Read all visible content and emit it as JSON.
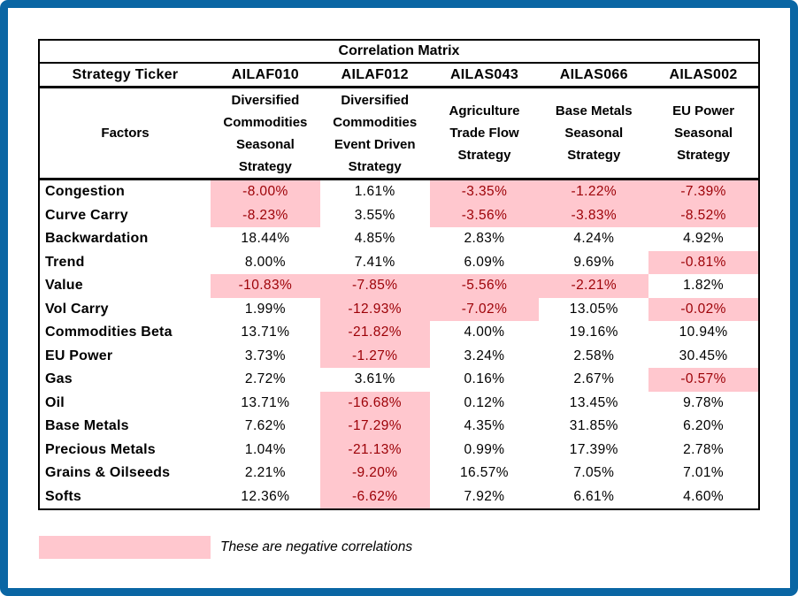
{
  "colors": {
    "frame_blue": "#0A66A4",
    "negative_bg": "#FFC7CE",
    "negative_text": "#9C0006",
    "table_border": "#000000"
  },
  "table": {
    "title": "Correlation Matrix",
    "strategy_ticker_label": "Strategy Ticker",
    "factors_label": "Factors",
    "columns": [
      {
        "ticker": "AILAF010",
        "name": "Diversified Commodities Seasonal Strategy"
      },
      {
        "ticker": "AILAF012",
        "name": "Diversified Commodities Event Driven Strategy"
      },
      {
        "ticker": "AILAS043",
        "name": "Agriculture Trade Flow Strategy"
      },
      {
        "ticker": "AILAS066",
        "name": "Base Metals Seasonal Strategy"
      },
      {
        "ticker": "AILAS002",
        "name": "EU Power Seasonal Strategy"
      }
    ],
    "rows": [
      {
        "factor": "Congestion",
        "values_pct": [
          -8.0,
          1.61,
          -3.35,
          -1.22,
          -7.39
        ]
      },
      {
        "factor": "Curve Carry",
        "values_pct": [
          -8.23,
          3.55,
          -3.56,
          -3.83,
          -8.52
        ]
      },
      {
        "factor": "Backwardation",
        "values_pct": [
          18.44,
          4.85,
          2.83,
          4.24,
          4.92
        ]
      },
      {
        "factor": "Trend",
        "values_pct": [
          8.0,
          7.41,
          6.09,
          9.69,
          -0.81
        ]
      },
      {
        "factor": "Value",
        "values_pct": [
          -10.83,
          -7.85,
          -5.56,
          -2.21,
          1.82
        ]
      },
      {
        "factor": "Vol Carry",
        "values_pct": [
          1.99,
          -12.93,
          -7.02,
          13.05,
          -0.02
        ]
      },
      {
        "factor": "Commodities Beta",
        "values_pct": [
          13.71,
          -21.82,
          4.0,
          19.16,
          10.94
        ]
      },
      {
        "factor": "EU Power",
        "values_pct": [
          3.73,
          -1.27,
          3.24,
          2.58,
          30.45
        ]
      },
      {
        "factor": "Gas",
        "values_pct": [
          2.72,
          3.61,
          0.16,
          2.67,
          -0.57
        ]
      },
      {
        "factor": "Oil",
        "values_pct": [
          13.71,
          -16.68,
          0.12,
          13.45,
          9.78
        ]
      },
      {
        "factor": "Base Metals",
        "values_pct": [
          7.62,
          -17.29,
          4.35,
          31.85,
          6.2
        ]
      },
      {
        "factor": "Precious Metals",
        "values_pct": [
          1.04,
          -21.13,
          0.99,
          17.39,
          2.78
        ]
      },
      {
        "factor": "Grains & Oilseeds",
        "values_pct": [
          2.21,
          -9.2,
          16.57,
          7.05,
          7.01
        ]
      },
      {
        "factor": "Softs",
        "values_pct": [
          12.36,
          -6.62,
          7.92,
          6.61,
          4.6
        ]
      }
    ]
  },
  "legend": {
    "text": "These are negative correlations"
  },
  "chart_data": {
    "type": "table",
    "title": "Correlation Matrix",
    "column_header": "Strategy Ticker",
    "row_header": "Factors",
    "columns": [
      "AILAF010",
      "AILAF012",
      "AILAS043",
      "AILAS066",
      "AILAS002"
    ],
    "column_names": [
      "Diversified Commodities Seasonal Strategy",
      "Diversified Commodities Event Driven Strategy",
      "Agriculture Trade Flow Strategy",
      "Base Metals Seasonal Strategy",
      "EU Power Seasonal Strategy"
    ],
    "categories": [
      "Congestion",
      "Curve Carry",
      "Backwardation",
      "Trend",
      "Value",
      "Vol Carry",
      "Commodities Beta",
      "EU Power",
      "Gas",
      "Oil",
      "Base Metals",
      "Precious Metals",
      "Grains & Oilseeds",
      "Softs"
    ],
    "values_pct": [
      [
        -8.0,
        1.61,
        -3.35,
        -1.22,
        -7.39
      ],
      [
        -8.23,
        3.55,
        -3.56,
        -3.83,
        -8.52
      ],
      [
        18.44,
        4.85,
        2.83,
        4.24,
        4.92
      ],
      [
        8.0,
        7.41,
        6.09,
        9.69,
        -0.81
      ],
      [
        -10.83,
        -7.85,
        -5.56,
        -2.21,
        1.82
      ],
      [
        1.99,
        -12.93,
        -7.02,
        13.05,
        -0.02
      ],
      [
        13.71,
        -21.82,
        4.0,
        19.16,
        10.94
      ],
      [
        3.73,
        -1.27,
        3.24,
        2.58,
        30.45
      ],
      [
        2.72,
        3.61,
        0.16,
        2.67,
        -0.57
      ],
      [
        13.71,
        -16.68,
        0.12,
        13.45,
        9.78
      ],
      [
        7.62,
        -17.29,
        4.35,
        31.85,
        6.2
      ],
      [
        1.04,
        -21.13,
        0.99,
        17.39,
        2.78
      ],
      [
        2.21,
        -9.2,
        16.57,
        7.05,
        7.01
      ],
      [
        12.36,
        -6.62,
        7.92,
        6.61,
        4.6
      ]
    ],
    "value_format": "0.00%",
    "highlight_rule": "negative values shown with pink background #FFC7CE and dark red text #9C0006"
  }
}
